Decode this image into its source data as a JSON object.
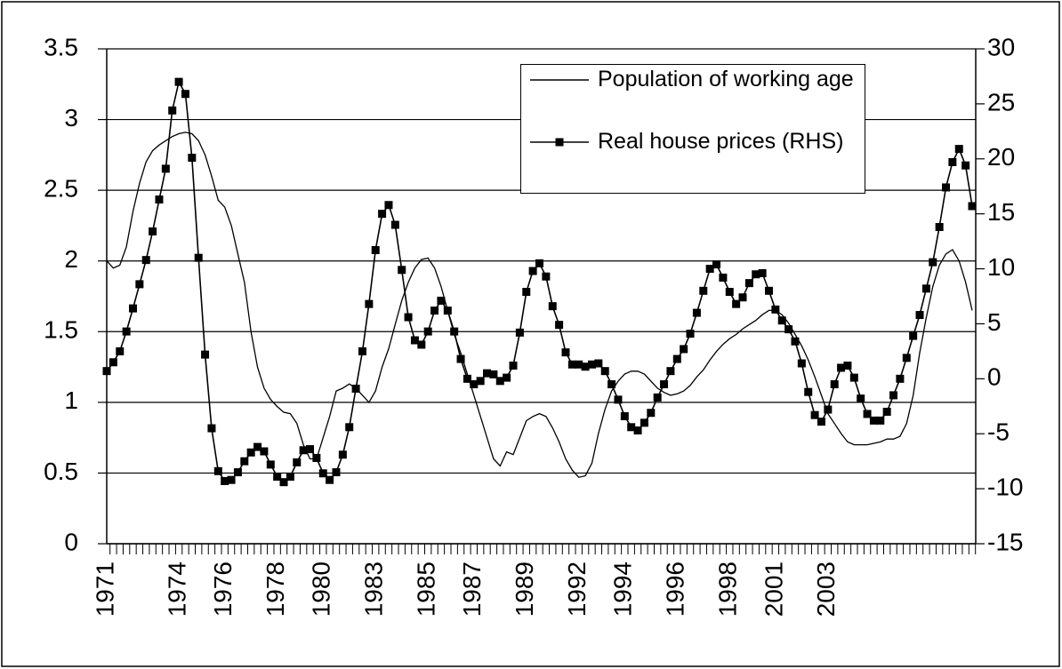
{
  "chart_data": {
    "type": "line",
    "categories": [
      "1971",
      null,
      null,
      null,
      null,
      null,
      null,
      null,
      null,
      null,
      null,
      "1974",
      null,
      null,
      null,
      null,
      null,
      null,
      "1976",
      null,
      null,
      null,
      null,
      null,
      null,
      null,
      "1978",
      null,
      null,
      null,
      null,
      null,
      null,
      "1980",
      null,
      null,
      null,
      null,
      null,
      null,
      null,
      "1983",
      null,
      null,
      null,
      null,
      null,
      null,
      null,
      "1985",
      null,
      null,
      null,
      null,
      null,
      null,
      "1987",
      null,
      null,
      null,
      null,
      null,
      null,
      null,
      "1989",
      null,
      null,
      null,
      null,
      null,
      null,
      null,
      "1992",
      null,
      null,
      null,
      null,
      null,
      null,
      "1994",
      null,
      null,
      null,
      null,
      null,
      null,
      null,
      "1996",
      null,
      null,
      null,
      null,
      null,
      null,
      null,
      "1998",
      null,
      null,
      null,
      null,
      null,
      null,
      "2001",
      null,
      null,
      null,
      null,
      null,
      null,
      null,
      "2003",
      null,
      null,
      null,
      null,
      null,
      null,
      null,
      null,
      null,
      null,
      null,
      null,
      null,
      null,
      null,
      null,
      null,
      null,
      null,
      null,
      null,
      null
    ],
    "series": [
      {
        "name": "Population of working age",
        "color": "#000000",
        "axis": "y",
        "marker": false,
        "values": [
          2.0,
          1.95,
          1.97,
          2.1,
          2.35,
          2.55,
          2.7,
          2.78,
          2.82,
          2.85,
          2.88,
          2.9,
          2.91,
          2.9,
          2.85,
          2.75,
          2.6,
          2.43,
          2.38,
          2.25,
          2.05,
          1.85,
          1.5,
          1.25,
          1.1,
          1.02,
          0.97,
          0.93,
          0.92,
          0.85,
          0.7,
          0.6,
          0.6,
          0.75,
          0.9,
          1.08,
          1.1,
          1.13,
          1.1,
          1.05,
          1.0,
          1.08,
          1.25,
          1.38,
          1.55,
          1.72,
          1.85,
          1.95,
          2.01,
          2.02,
          1.95,
          1.82,
          1.65,
          1.48,
          1.35,
          1.2,
          1.05,
          0.9,
          0.75,
          0.6,
          0.55,
          0.65,
          0.63,
          0.75,
          0.87,
          0.9,
          0.92,
          0.9,
          0.82,
          0.72,
          0.6,
          0.52,
          0.47,
          0.48,
          0.57,
          0.78,
          0.95,
          1.08,
          1.15,
          1.2,
          1.22,
          1.22,
          1.2,
          1.15,
          1.1,
          1.07,
          1.05,
          1.06,
          1.08,
          1.12,
          1.18,
          1.23,
          1.3,
          1.36,
          1.41,
          1.45,
          1.48,
          1.52,
          1.55,
          1.58,
          1.62,
          1.65,
          1.65,
          1.62,
          1.56,
          1.48,
          1.4,
          1.3,
          1.18,
          1.05,
          0.92,
          0.85,
          0.78,
          0.72,
          0.7,
          0.7,
          0.7,
          0.71,
          0.72,
          0.74,
          0.74,
          0.76,
          0.85,
          1.05,
          1.35,
          1.6,
          1.82,
          1.97,
          2.05,
          2.08,
          2.0,
          1.85,
          1.65
        ]
      },
      {
        "name": "Real house prices (RHS)",
        "color": "#000000",
        "axis": "y2",
        "marker": true,
        "values": [
          0.7,
          1.5,
          2.5,
          4.3,
          6.4,
          8.6,
          10.8,
          13.4,
          16.3,
          19.1,
          24.4,
          27.0,
          25.9,
          20.1,
          11.0,
          2.2,
          -4.5,
          -8.4,
          -9.3,
          -9.2,
          -8.5,
          -7.5,
          -6.7,
          -6.2,
          -6.6,
          -7.8,
          -8.9,
          -9.4,
          -8.9,
          -7.6,
          -6.5,
          -6.4,
          -7.2,
          -8.6,
          -9.2,
          -8.5,
          -6.9,
          -4.4,
          -0.9,
          2.5,
          6.8,
          11.7,
          15.0,
          15.8,
          14.0,
          9.9,
          5.6,
          3.5,
          3.1,
          4.3,
          6.2,
          7.1,
          6.2,
          4.3,
          1.8,
          0.0,
          -0.5,
          -0.2,
          0.5,
          0.4,
          -0.2,
          0.1,
          1.2,
          4.2,
          7.9,
          9.8,
          10.5,
          9.3,
          6.6,
          4.9,
          2.4,
          1.3,
          1.3,
          1.1,
          1.3,
          1.4,
          0.7,
          -0.5,
          -1.9,
          -3.4,
          -4.4,
          -4.7,
          -4.0,
          -3.1,
          -1.7,
          -0.5,
          0.7,
          1.8,
          2.7,
          4.1,
          6.0,
          8.0,
          10.0,
          10.4,
          9.2,
          7.9,
          6.8,
          7.4,
          8.7,
          9.5,
          9.6,
          8.0,
          6.3,
          5.3,
          4.5,
          3.4,
          1.4,
          -1.2,
          -3.3,
          -3.9,
          -2.8,
          -0.5,
          1.0,
          1.2,
          0.1,
          -1.8,
          -3.2,
          -3.8,
          -3.8,
          -3.0,
          -1.5,
          0.0,
          1.9,
          3.9,
          5.8,
          8.2,
          10.6,
          13.8,
          17.4,
          19.7,
          20.9,
          19.4,
          15.7
        ]
      }
    ],
    "ylim": [
      0,
      3.5
    ],
    "yticks": [
      0,
      0.5,
      1,
      1.5,
      2,
      2.5,
      3,
      3.5
    ],
    "y2lim": [
      -15,
      30
    ],
    "y2ticks": [
      -15,
      -10,
      -5,
      0,
      5,
      10,
      15,
      20,
      25,
      30
    ],
    "grid": true,
    "legend": "top-right"
  }
}
